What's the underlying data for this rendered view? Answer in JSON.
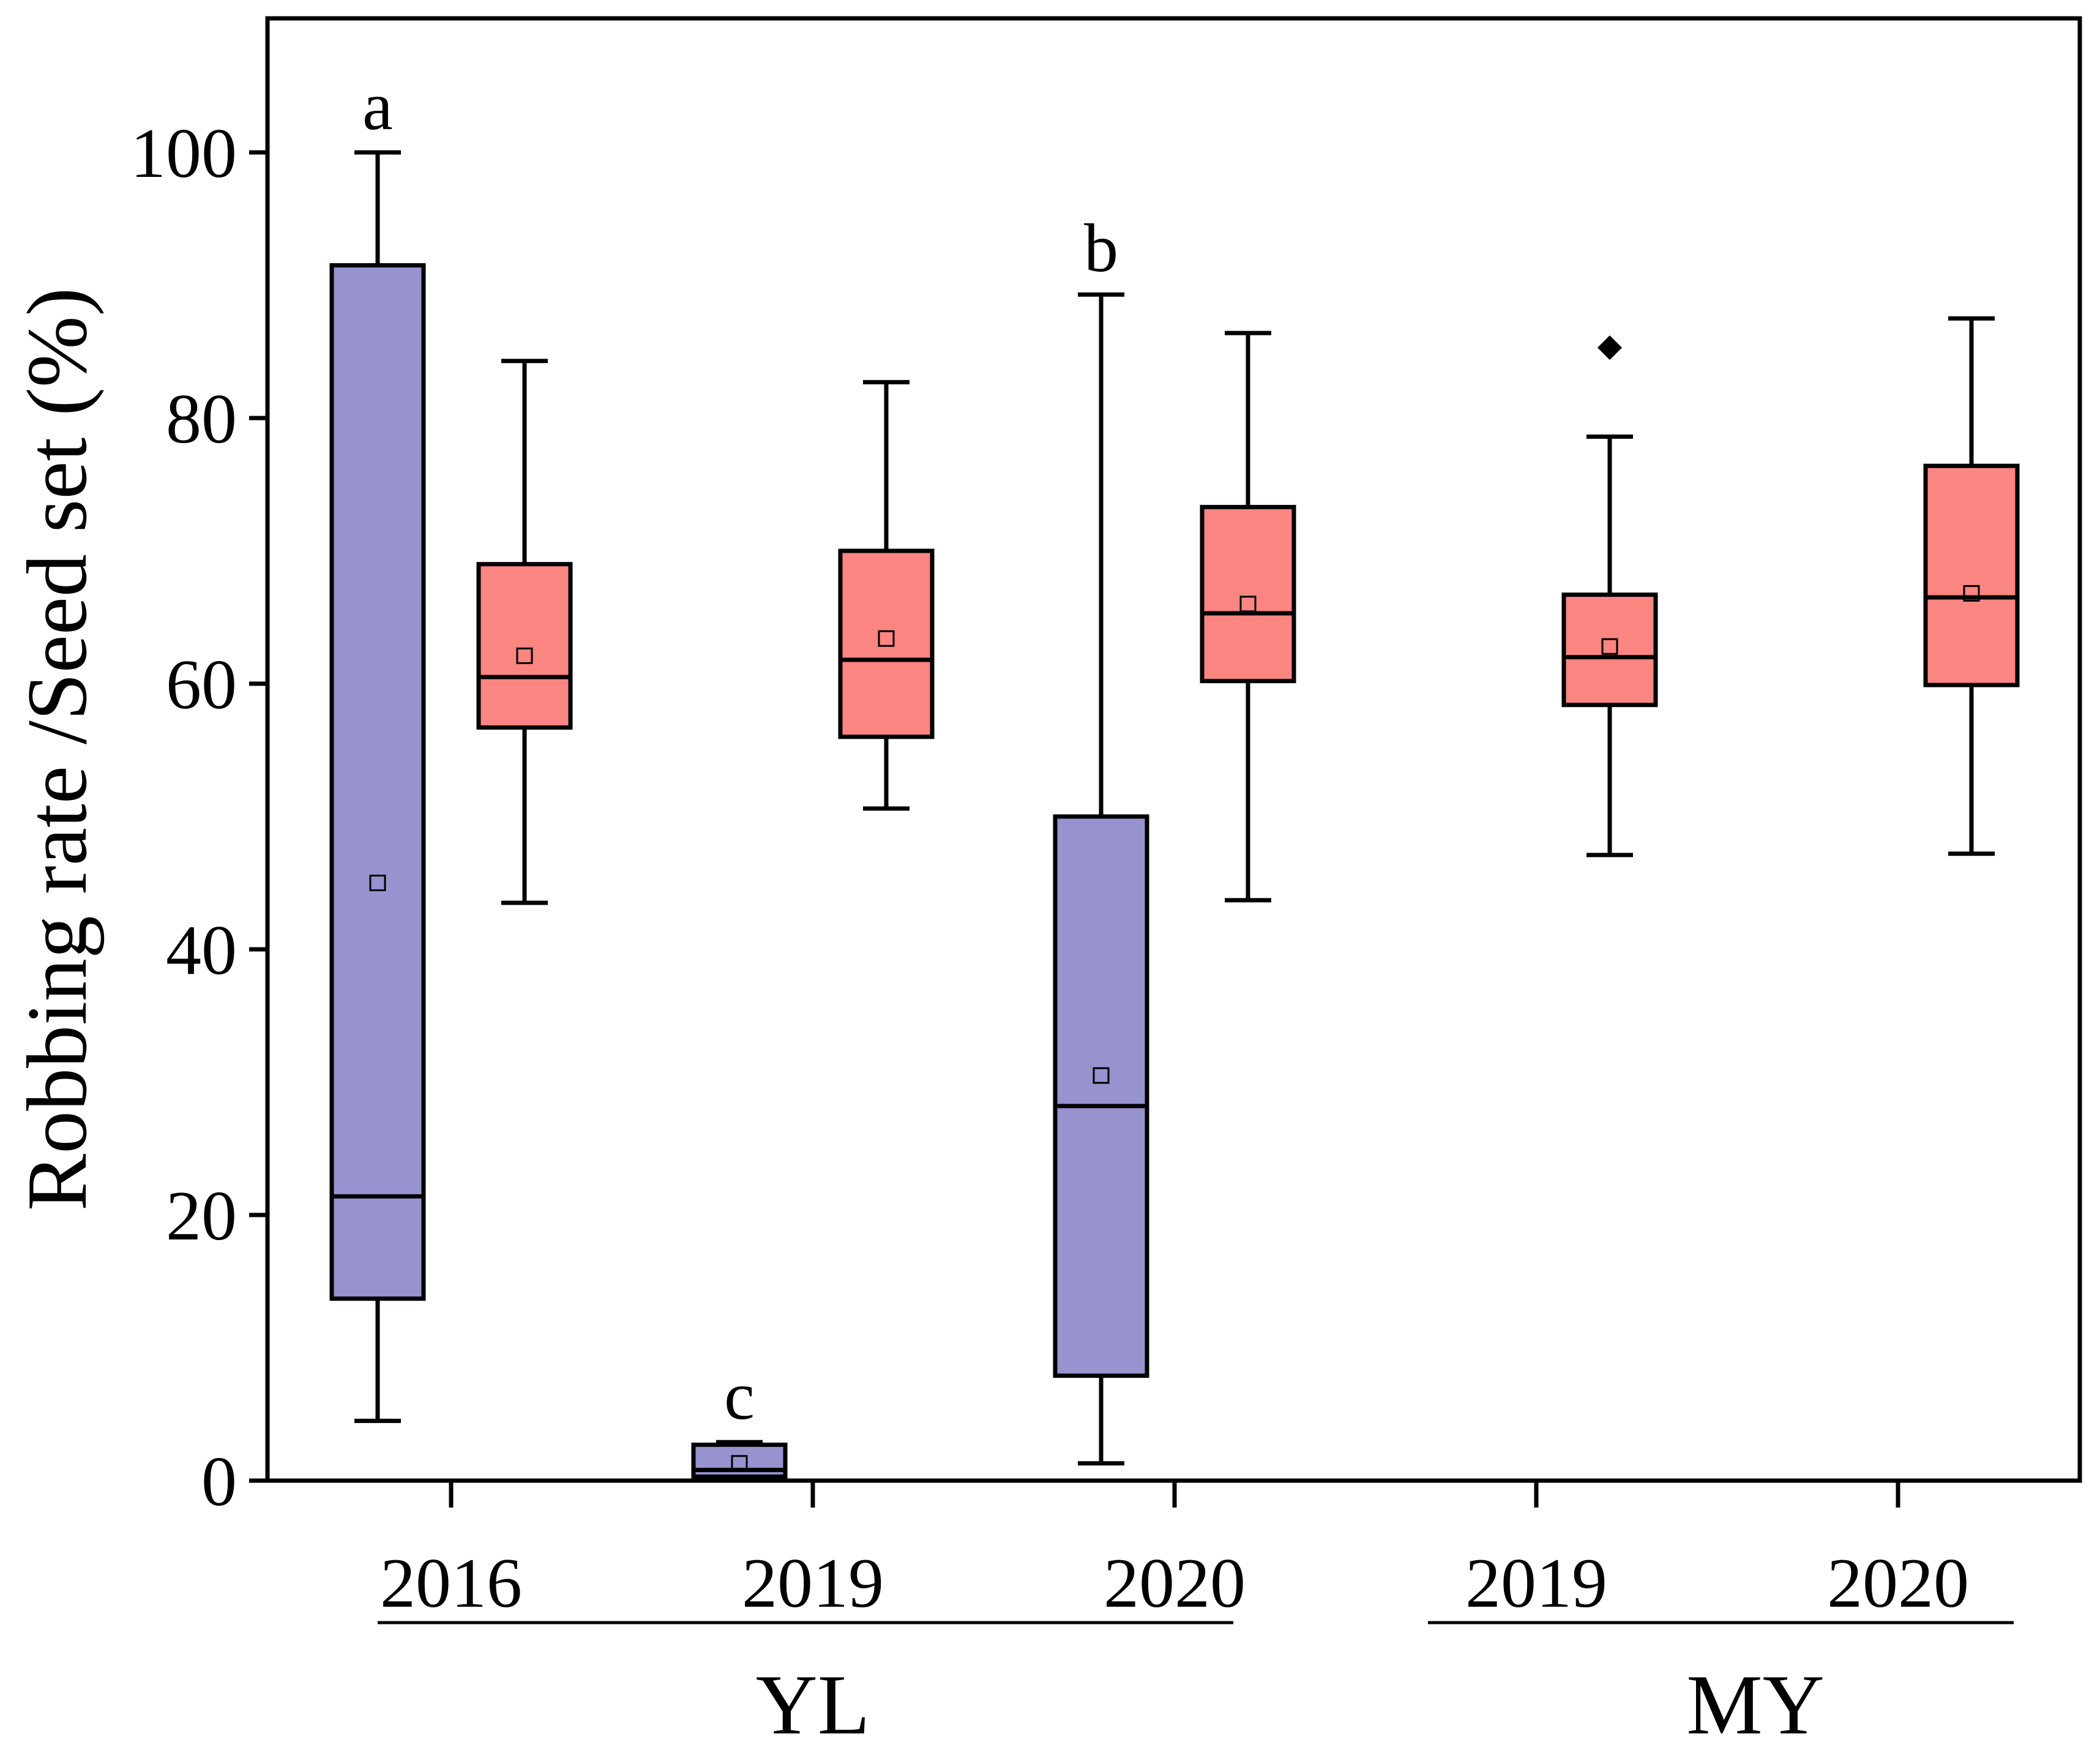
{
  "chart_data": {
    "type": "box",
    "title": "",
    "ylabel": "Robbing rate /Seed set (%)",
    "xlabel": "",
    "ylim": [
      0,
      110
    ],
    "yticks": [
      0,
      20,
      40,
      60,
      80,
      100
    ],
    "ytick_labels": [
      "0",
      "20",
      "40",
      "60",
      "80",
      "100"
    ],
    "grid": false,
    "series_colors": {
      "robbing_rate": "#9693CF",
      "seed_set": "#FA8581"
    },
    "groups": [
      {
        "site": "YL",
        "year": "2016"
      },
      {
        "site": "YL",
        "year": "2019"
      },
      {
        "site": "YL",
        "year": "2020"
      },
      {
        "site": "MY",
        "year": "2019"
      },
      {
        "site": "MY",
        "year": "2020"
      }
    ],
    "site_labels": [
      "YL",
      "MY"
    ],
    "boxes": [
      {
        "group": 0,
        "series": "robbing_rate",
        "min": 4.5,
        "q1": 13.7,
        "median": 21.4,
        "q3": 91.5,
        "max": 100,
        "mean": 45.0,
        "letter": "a"
      },
      {
        "group": 0,
        "series": "seed_set",
        "min": 43.5,
        "q1": 56.7,
        "median": 60.5,
        "q3": 69.0,
        "max": 84.3,
        "mean": 62.1
      },
      {
        "group": 1,
        "series": "robbing_rate",
        "min": 0.0,
        "q1": 0.3,
        "median": 0.8,
        "q3": 2.7,
        "max": 2.9,
        "mean": 1.3,
        "letter": "c"
      },
      {
        "group": 1,
        "series": "seed_set",
        "min": 50.6,
        "q1": 56.0,
        "median": 61.8,
        "q3": 70.0,
        "max": 82.7,
        "mean": 63.4
      },
      {
        "group": 2,
        "series": "robbing_rate",
        "min": 1.3,
        "q1": 7.9,
        "median": 28.2,
        "q3": 50.0,
        "max": 89.3,
        "mean": 30.5,
        "letter": "b"
      },
      {
        "group": 2,
        "series": "seed_set",
        "min": 43.7,
        "q1": 60.2,
        "median": 65.3,
        "q3": 73.3,
        "max": 86.4,
        "mean": 66.0
      },
      {
        "group": 3,
        "series": "seed_set",
        "min": 47.1,
        "q1": 58.4,
        "median": 62.0,
        "q3": 66.7,
        "max": 78.6,
        "mean": 62.8,
        "outliers": [
          85.3
        ]
      },
      {
        "group": 4,
        "series": "seed_set",
        "min": 47.2,
        "q1": 59.9,
        "median": 66.5,
        "q3": 76.4,
        "max": 87.5,
        "mean": 66.8
      }
    ]
  }
}
